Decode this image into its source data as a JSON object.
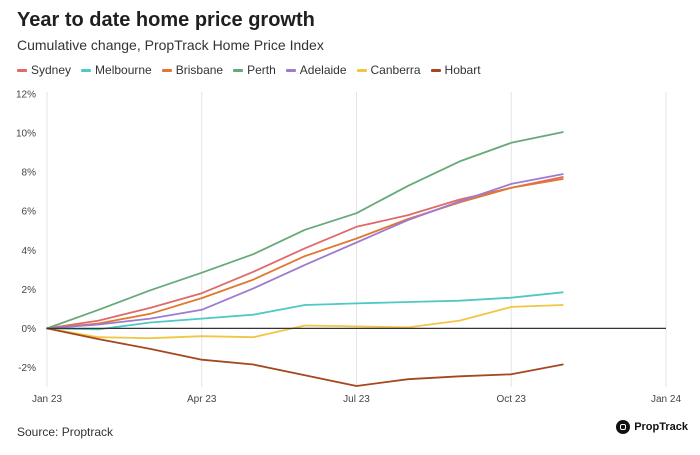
{
  "title": "Year to date home price growth",
  "subtitle": "Cumulative change, PropTrack Home Price Index",
  "source": "Source: Proptrack",
  "brand": "PropTrack",
  "chart_data": {
    "type": "line",
    "title": "Year to date home price growth",
    "subtitle": "Cumulative change, PropTrack Home Price Index",
    "xlabel": "",
    "ylabel": "",
    "x": [
      "Jan 23",
      "Feb 23",
      "Mar 23",
      "Apr 23",
      "May 23",
      "Jun 23",
      "Jul 23",
      "Aug 23",
      "Sep 23",
      "Oct 23",
      "Nov 23"
    ],
    "x_ticks": [
      "Jan 23",
      "Apr 23",
      "Jul 23",
      "Oct 23",
      "Jan 24"
    ],
    "y_ticks": [
      "-2%",
      "0%",
      "2%",
      "4%",
      "6%",
      "8%",
      "10%",
      "12%"
    ],
    "ylim": [
      -3,
      12
    ],
    "grid": "vertical",
    "legend": "top",
    "series": [
      {
        "name": "Sydney",
        "color": "#e06a6a",
        "values": [
          0,
          0.4,
          1.05,
          1.8,
          2.9,
          4.1,
          5.2,
          5.8,
          6.6,
          7.2,
          7.75
        ]
      },
      {
        "name": "Melbourne",
        "color": "#4ec9c4",
        "values": [
          0,
          -0.05,
          0.3,
          0.5,
          0.7,
          1.2,
          1.28,
          1.35,
          1.42,
          1.57,
          1.85
        ]
      },
      {
        "name": "Brisbane",
        "color": "#e0782f",
        "values": [
          0,
          0.25,
          0.75,
          1.55,
          2.5,
          3.7,
          4.6,
          5.6,
          6.45,
          7.2,
          7.65
        ]
      },
      {
        "name": "Perth",
        "color": "#66aa77",
        "values": [
          0,
          0.95,
          1.95,
          2.85,
          3.8,
          5.05,
          5.9,
          7.3,
          8.55,
          9.5,
          10.05
        ]
      },
      {
        "name": "Adelaide",
        "color": "#9e7bd0",
        "values": [
          0,
          0.2,
          0.5,
          0.95,
          2.05,
          3.25,
          4.4,
          5.55,
          6.5,
          7.4,
          7.9
        ]
      },
      {
        "name": "Canberra",
        "color": "#f2c644",
        "values": [
          0,
          -0.45,
          -0.5,
          -0.4,
          -0.45,
          0.15,
          0.1,
          0.05,
          0.4,
          1.1,
          1.2
        ]
      },
      {
        "name": "Hobart",
        "color": "#a5471f",
        "values": [
          0,
          -0.55,
          -1.05,
          -1.6,
          -1.85,
          -2.4,
          -2.95,
          -2.6,
          -2.45,
          -2.35,
          -1.85
        ]
      }
    ]
  }
}
